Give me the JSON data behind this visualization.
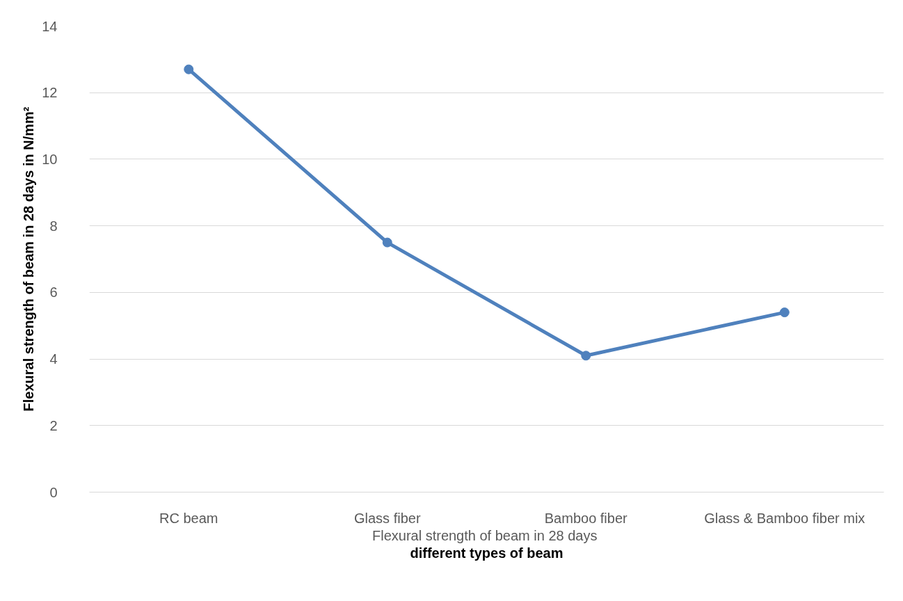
{
  "chart_data": {
    "type": "line",
    "ylabel": "Flexural strength of beam in 28 days in N/mm²",
    "xlabel": "different types of beam",
    "annotations": [
      "Flexural strength of beam  in 28 days"
    ],
    "categories": [
      "RC beam",
      "Glass fiber",
      "Bamboo fiber",
      "Glass & Bamboo fiber mix"
    ],
    "series": [
      {
        "color": "#4f81bd",
        "values": [
          12.7,
          7.5,
          4.1,
          5.4
        ]
      }
    ],
    "ylim": [
      0,
      14
    ],
    "yticks": [
      0,
      2,
      4,
      6,
      8,
      10,
      12,
      14
    ],
    "grid": "y",
    "marker": "circle",
    "line_style": "solid"
  }
}
